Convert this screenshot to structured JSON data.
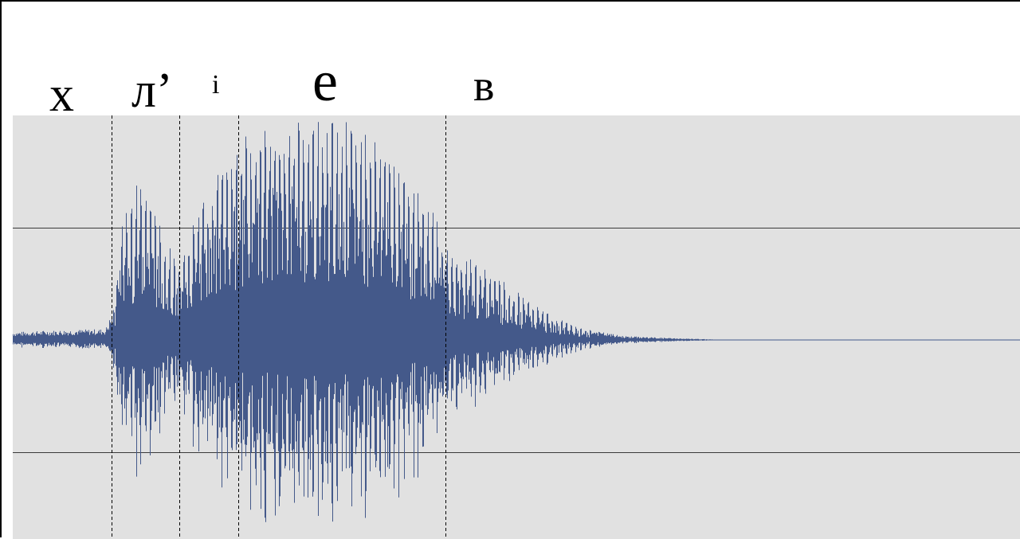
{
  "segments": [
    {
      "label": "х"
    },
    {
      "label": "л’"
    },
    {
      "label": "і"
    },
    {
      "label": "е"
    },
    {
      "label": "в"
    }
  ],
  "colors": {
    "waveform": "#44598a",
    "background": "#e1e1e1",
    "gridline": "#3a3a3a",
    "boundary": "#000000"
  }
}
